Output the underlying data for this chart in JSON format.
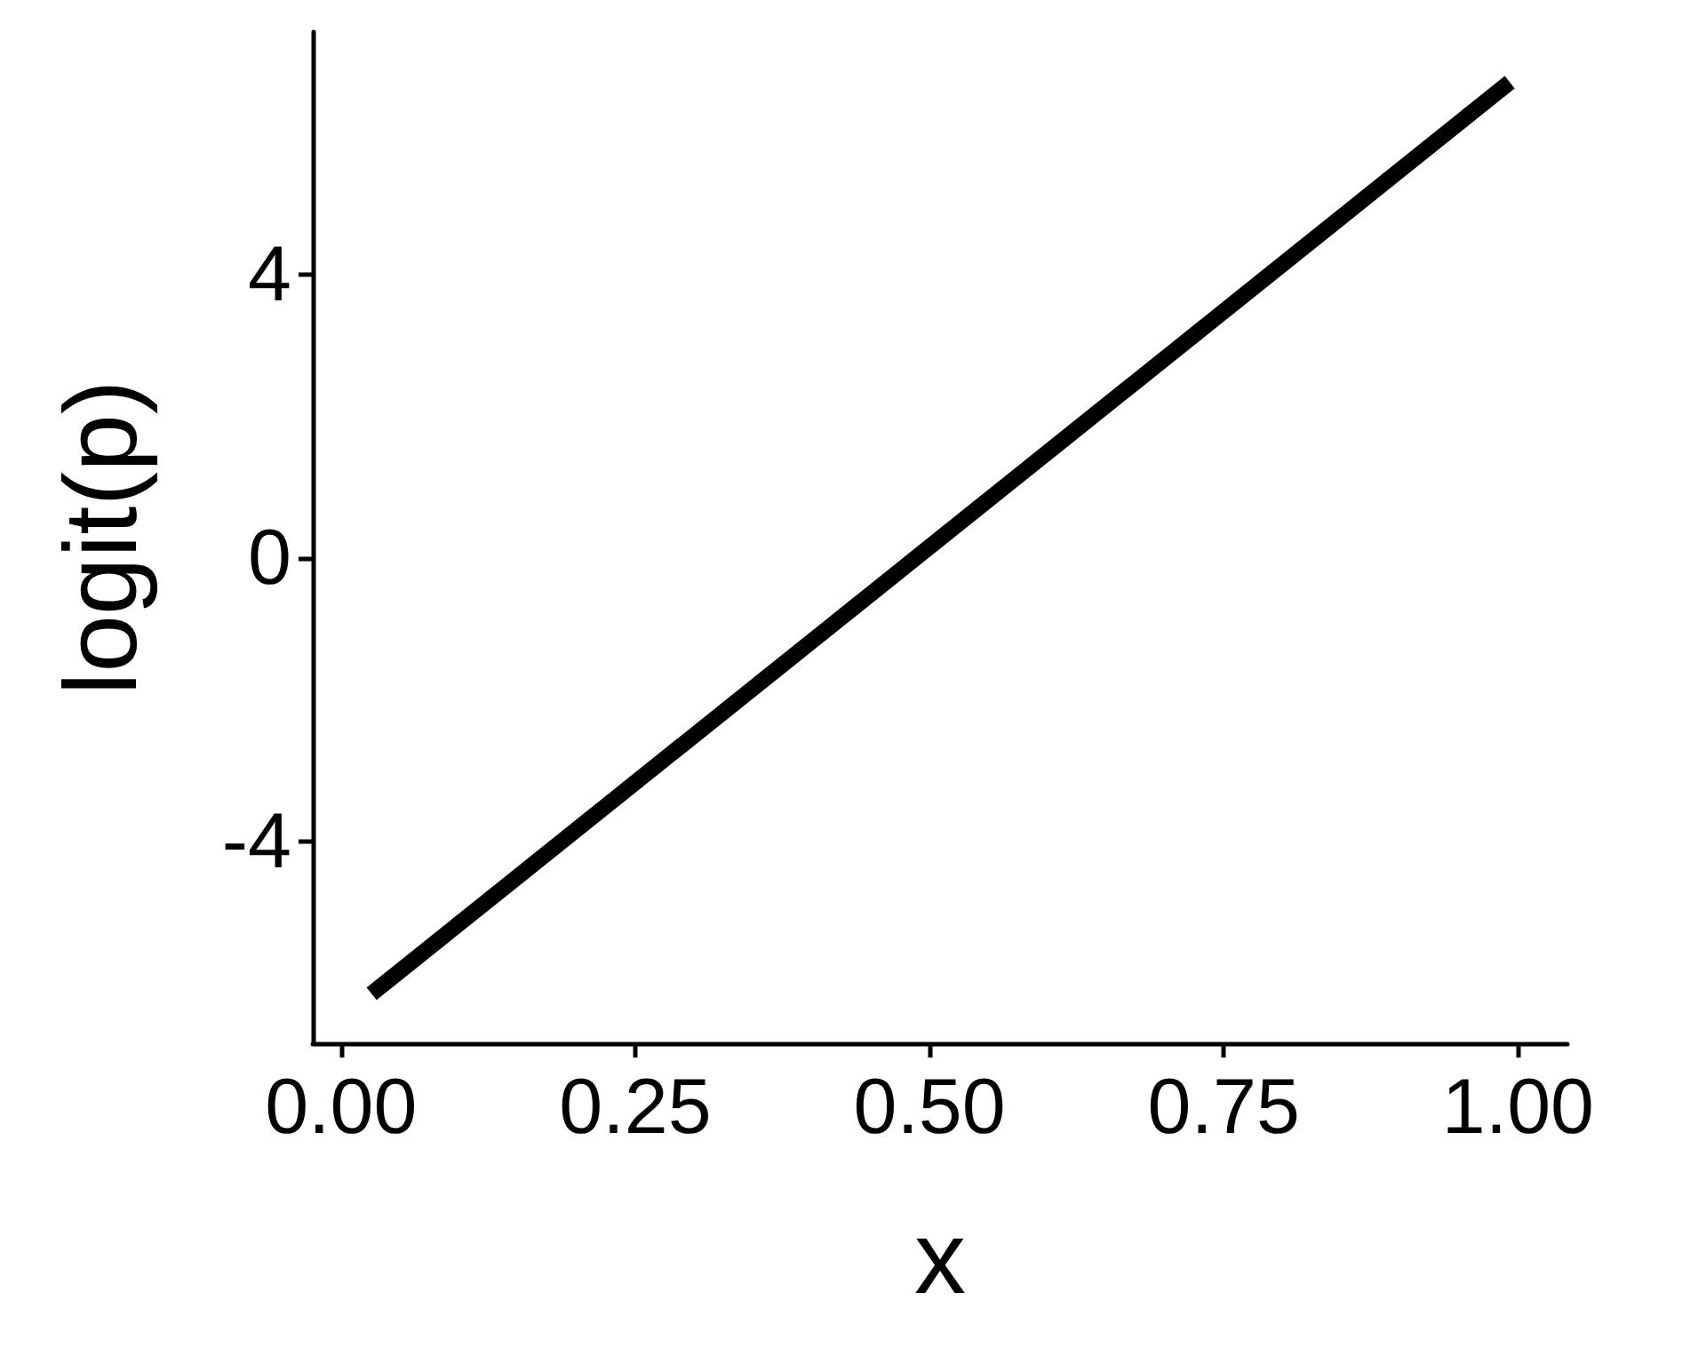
{
  "chart_data": {
    "type": "line",
    "xlabel": "x",
    "ylabel": "logit(p)",
    "x": [
      0.026,
      0.993
    ],
    "series": [
      {
        "color": "#000000",
        "values": [
          -6.15,
          6.72
        ]
      }
    ],
    "xlim": [
      -0.024,
      1.042
    ],
    "ylim": [
      -6.85,
      7.43
    ],
    "xticks": [
      {
        "value": 0,
        "label": "0.00"
      },
      {
        "value": 0.25,
        "label": "0.25"
      },
      {
        "value": 0.5,
        "label": "0.50"
      },
      {
        "value": 0.75,
        "label": "0.75"
      },
      {
        "value": 1,
        "label": "1.00"
      }
    ],
    "yticks": [
      -4,
      0,
      4
    ],
    "grid": false,
    "marker": "none",
    "line_style": "solid"
  }
}
